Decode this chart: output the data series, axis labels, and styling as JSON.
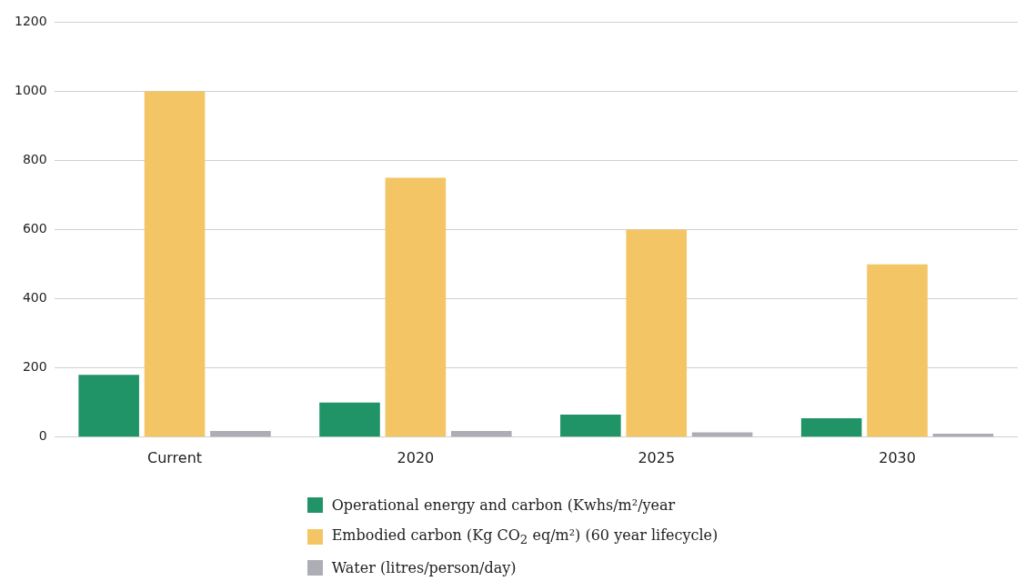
{
  "chart_data": {
    "type": "bar",
    "categories": [
      "Current",
      "2020",
      "2025",
      "2030"
    ],
    "series": [
      {
        "name": "Operational energy and carbon (Kwhs/m²/year",
        "color": "#219467",
        "values": [
          180,
          100,
          65,
          55
        ]
      },
      {
        "name": "Embodied carbon (Kg CO$_{2}$ eq/m²) (60 year lifecycle)",
        "color": "#f3c565",
        "values": [
          1000,
          750,
          600,
          500
        ]
      },
      {
        "name": "Water (litres/person/day)",
        "color": "#adadb5",
        "values": [
          18,
          18,
          14,
          10
        ]
      }
    ],
    "ylim": [
      0,
      1200
    ],
    "yticks": [
      0,
      200,
      400,
      600,
      800,
      1000,
      1200
    ],
    "grid": "y",
    "legend": "bottom"
  }
}
